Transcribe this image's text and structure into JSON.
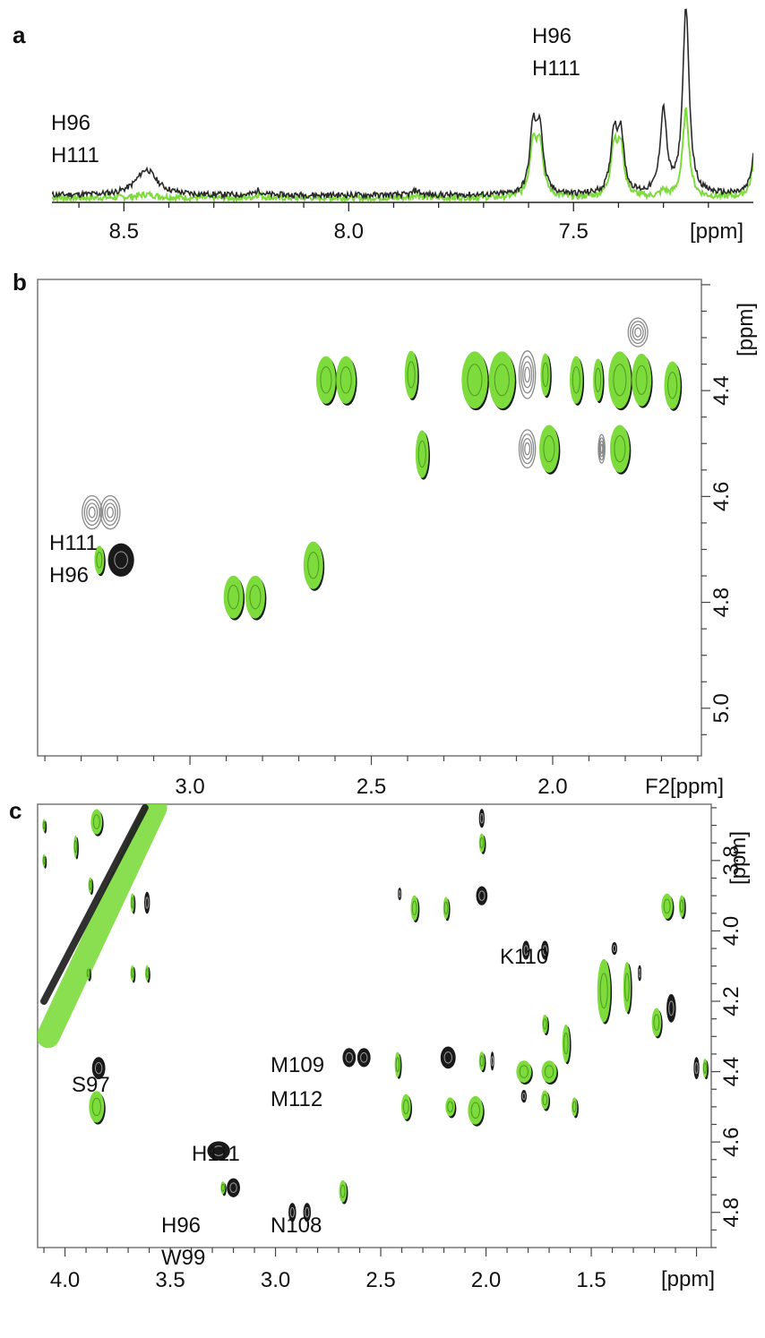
{
  "chart_data": [
    {
      "panel": "a",
      "type": "line",
      "xlabel": "[ppm]",
      "x_ticks": [
        "8.5",
        "8.0",
        "7.5"
      ],
      "x_tick_values": [
        8.5,
        8.0,
        7.5
      ],
      "xlim": [
        8.66,
        7.1
      ],
      "y_visible": false,
      "colors": {
        "black_trace": "#2b2b2b",
        "green_trace": "#7ddc3c"
      },
      "peaks": [
        {
          "x": 8.45,
          "black": 0.22,
          "green": 0.03
        },
        {
          "x": 8.2,
          "black": 0.04,
          "green": 0.03
        },
        {
          "x": 7.85,
          "black": 0.04,
          "green": 0.03
        },
        {
          "x": 7.59,
          "black": 0.55,
          "green": 0.45
        },
        {
          "x": 7.575,
          "black": 0.55,
          "green": 0.45
        },
        {
          "x": 7.41,
          "black": 0.5,
          "green": 0.42
        },
        {
          "x": 7.395,
          "black": 0.5,
          "green": 0.42
        },
        {
          "x": 7.3,
          "black": 0.72,
          "green": 0.05
        },
        {
          "x": 7.25,
          "black": 1.6,
          "green": 0.75
        },
        {
          "x": 7.095,
          "black": 0.45,
          "green": 0.4
        },
        {
          "x": 7.05,
          "black": 0.45,
          "green": 0.4
        }
      ],
      "annotations": [
        {
          "lines": [
            "H96",
            "H111"
          ],
          "x": 8.45
        },
        {
          "lines": [
            "H96",
            "H111"
          ],
          "x": 7.28
        }
      ]
    },
    {
      "panel": "b",
      "type": "scatter",
      "xlabel": "F2[ppm]",
      "ylabel": "[ppm]",
      "x_ticks": [
        "3.0",
        "2.5",
        "2.0"
      ],
      "x_tick_values": [
        3.0,
        2.5,
        2.0
      ],
      "y_ticks": [
        "4.4",
        "4.6",
        "4.8",
        "5.0"
      ],
      "y_tick_values": [
        4.4,
        4.6,
        4.8,
        5.0
      ],
      "xlim": [
        3.42,
        1.59
      ],
      "ylim": [
        4.19,
        5.09
      ],
      "colors": {
        "green": "#7ddc3c",
        "black": "#1a1a1a",
        "gray": "#8a8a8a"
      },
      "peaks": [
        {
          "x": 3.27,
          "y": 4.63,
          "w": 0.03,
          "h": 0.035,
          "color": "gray"
        },
        {
          "x": 3.22,
          "y": 4.63,
          "w": 0.03,
          "h": 0.035,
          "color": "gray"
        },
        {
          "x": 3.19,
          "y": 4.72,
          "w": 0.04,
          "h": 0.035,
          "color": "black"
        },
        {
          "x": 3.25,
          "y": 4.72,
          "w": 0.015,
          "h": 0.03,
          "color": "green"
        },
        {
          "x": 2.88,
          "y": 4.79,
          "w": 0.03,
          "h": 0.045,
          "color": "green"
        },
        {
          "x": 2.82,
          "y": 4.79,
          "w": 0.03,
          "h": 0.045,
          "color": "green"
        },
        {
          "x": 2.66,
          "y": 4.73,
          "w": 0.03,
          "h": 0.05,
          "color": "green"
        },
        {
          "x": 2.625,
          "y": 4.38,
          "w": 0.03,
          "h": 0.05,
          "color": "green"
        },
        {
          "x": 2.57,
          "y": 4.38,
          "w": 0.03,
          "h": 0.05,
          "color": "green"
        },
        {
          "x": 2.39,
          "y": 4.37,
          "w": 0.02,
          "h": 0.05,
          "color": "green"
        },
        {
          "x": 2.36,
          "y": 4.52,
          "w": 0.02,
          "h": 0.05,
          "color": "green"
        },
        {
          "x": 2.215,
          "y": 4.38,
          "w": 0.04,
          "h": 0.06,
          "color": "green"
        },
        {
          "x": 2.14,
          "y": 4.38,
          "w": 0.04,
          "h": 0.06,
          "color": "green"
        },
        {
          "x": 2.07,
          "y": 4.37,
          "w": 0.025,
          "h": 0.05,
          "color": "gray"
        },
        {
          "x": 2.07,
          "y": 4.51,
          "w": 0.025,
          "h": 0.04,
          "color": "gray"
        },
        {
          "x": 2.01,
          "y": 4.51,
          "w": 0.03,
          "h": 0.05,
          "color": "green"
        },
        {
          "x": 2.02,
          "y": 4.37,
          "w": 0.015,
          "h": 0.045,
          "color": "green"
        },
        {
          "x": 1.935,
          "y": 4.38,
          "w": 0.02,
          "h": 0.05,
          "color": "green"
        },
        {
          "x": 1.875,
          "y": 4.38,
          "w": 0.015,
          "h": 0.045,
          "color": "green"
        },
        {
          "x": 1.865,
          "y": 4.51,
          "w": 0.01,
          "h": 0.03,
          "color": "gray"
        },
        {
          "x": 1.815,
          "y": 4.38,
          "w": 0.035,
          "h": 0.06,
          "color": "green"
        },
        {
          "x": 1.815,
          "y": 4.51,
          "w": 0.03,
          "h": 0.05,
          "color": "green"
        },
        {
          "x": 1.765,
          "y": 4.29,
          "w": 0.03,
          "h": 0.03,
          "color": "gray"
        },
        {
          "x": 1.755,
          "y": 4.38,
          "w": 0.03,
          "h": 0.055,
          "color": "green"
        },
        {
          "x": 1.67,
          "y": 4.39,
          "w": 0.025,
          "h": 0.05,
          "color": "green"
        }
      ],
      "annotations": [
        {
          "text": "H111",
          "x": 3.42,
          "y": 4.685
        },
        {
          "text": "H96",
          "x": 3.42,
          "y": 4.735
        }
      ]
    },
    {
      "panel": "c",
      "type": "scatter",
      "xlabel": "[ppm]",
      "ylabel": "[ppm]",
      "x_ticks": [
        "4.0",
        "3.5",
        "3.0",
        "2.5",
        "2.0",
        "1.5"
      ],
      "x_tick_values": [
        4.0,
        3.5,
        3.0,
        2.5,
        2.0,
        1.5
      ],
      "y_ticks": [
        "3.8",
        "4.0",
        "4.2",
        "4.4",
        "4.6",
        "4.8"
      ],
      "y_tick_values": [
        3.8,
        4.0,
        4.2,
        4.4,
        4.6,
        4.8
      ],
      "xlim": [
        4.13,
        0.93
      ],
      "ylim": [
        3.64,
        4.9
      ],
      "colors": {
        "green": "#7ddc3c",
        "black": "#1a1a1a",
        "gray": "#8a8a8a"
      },
      "peaks": [
        {
          "x": 3.84,
          "y": 4.39,
          "w": 0.035,
          "h": 0.035,
          "color": "black"
        },
        {
          "x": 3.85,
          "y": 4.5,
          "w": 0.04,
          "h": 0.05,
          "color": "green"
        },
        {
          "x": 3.27,
          "y": 4.625,
          "w": 0.06,
          "h": 0.03,
          "color": "black"
        },
        {
          "x": 3.2,
          "y": 4.73,
          "w": 0.035,
          "h": 0.03,
          "color": "black"
        },
        {
          "x": 3.25,
          "y": 4.73,
          "w": 0.012,
          "h": 0.02,
          "color": "green"
        },
        {
          "x": 2.92,
          "y": 4.8,
          "w": 0.02,
          "h": 0.03,
          "color": "black"
        },
        {
          "x": 2.85,
          "y": 4.8,
          "w": 0.02,
          "h": 0.03,
          "color": "black"
        },
        {
          "x": 2.68,
          "y": 4.74,
          "w": 0.02,
          "h": 0.035,
          "color": "green"
        },
        {
          "x": 2.65,
          "y": 4.36,
          "w": 0.035,
          "h": 0.03,
          "color": "black"
        },
        {
          "x": 2.58,
          "y": 4.36,
          "w": 0.035,
          "h": 0.03,
          "color": "black"
        },
        {
          "x": 2.42,
          "y": 4.38,
          "w": 0.015,
          "h": 0.04,
          "color": "green"
        },
        {
          "x": 2.38,
          "y": 4.5,
          "w": 0.025,
          "h": 0.04,
          "color": "green"
        },
        {
          "x": 2.18,
          "y": 4.36,
          "w": 0.04,
          "h": 0.035,
          "color": "black"
        },
        {
          "x": 2.02,
          "y": 4.37,
          "w": 0.015,
          "h": 0.03,
          "color": "green"
        },
        {
          "x": 1.97,
          "y": 4.37,
          "w": 0.01,
          "h": 0.03,
          "color": "black"
        },
        {
          "x": 2.17,
          "y": 4.5,
          "w": 0.025,
          "h": 0.03,
          "color": "green"
        },
        {
          "x": 2.05,
          "y": 4.51,
          "w": 0.04,
          "h": 0.045,
          "color": "green"
        },
        {
          "x": 2.02,
          "y": 3.68,
          "w": 0.015,
          "h": 0.03,
          "color": "black"
        },
        {
          "x": 2.02,
          "y": 3.75,
          "w": 0.015,
          "h": 0.03,
          "color": "green"
        },
        {
          "x": 2.41,
          "y": 3.895,
          "w": 0.01,
          "h": 0.02,
          "color": "black"
        },
        {
          "x": 2.34,
          "y": 3.935,
          "w": 0.02,
          "h": 0.04,
          "color": "green"
        },
        {
          "x": 2.19,
          "y": 3.935,
          "w": 0.015,
          "h": 0.035,
          "color": "green"
        },
        {
          "x": 2.02,
          "y": 3.9,
          "w": 0.03,
          "h": 0.03,
          "color": "black"
        },
        {
          "x": 1.81,
          "y": 4.055,
          "w": 0.02,
          "h": 0.03,
          "color": "black"
        },
        {
          "x": 1.72,
          "y": 4.055,
          "w": 0.02,
          "h": 0.03,
          "color": "black"
        },
        {
          "x": 1.82,
          "y": 4.4,
          "w": 0.04,
          "h": 0.035,
          "color": "green"
        },
        {
          "x": 1.7,
          "y": 4.4,
          "w": 0.04,
          "h": 0.035,
          "color": "green"
        },
        {
          "x": 1.82,
          "y": 4.47,
          "w": 0.015,
          "h": 0.02,
          "color": "black"
        },
        {
          "x": 1.72,
          "y": 4.48,
          "w": 0.02,
          "h": 0.03,
          "color": "green"
        },
        {
          "x": 1.58,
          "y": 4.5,
          "w": 0.015,
          "h": 0.03,
          "color": "green"
        },
        {
          "x": 1.72,
          "y": 4.265,
          "w": 0.015,
          "h": 0.03,
          "color": "green"
        },
        {
          "x": 1.62,
          "y": 4.32,
          "w": 0.02,
          "h": 0.06,
          "color": "green"
        },
        {
          "x": 1.44,
          "y": 4.17,
          "w": 0.035,
          "h": 0.1,
          "color": "green"
        },
        {
          "x": 1.33,
          "y": 4.16,
          "w": 0.02,
          "h": 0.08,
          "color": "green"
        },
        {
          "x": 1.39,
          "y": 4.05,
          "w": 0.015,
          "h": 0.02,
          "color": "black"
        },
        {
          "x": 1.27,
          "y": 4.12,
          "w": 0.01,
          "h": 0.025,
          "color": "black"
        },
        {
          "x": 1.19,
          "y": 4.26,
          "w": 0.025,
          "h": 0.045,
          "color": "green"
        },
        {
          "x": 1.12,
          "y": 4.22,
          "w": 0.025,
          "h": 0.045,
          "color": "black"
        },
        {
          "x": 1.14,
          "y": 3.93,
          "w": 0.03,
          "h": 0.04,
          "color": "green"
        },
        {
          "x": 1.07,
          "y": 3.93,
          "w": 0.015,
          "h": 0.035,
          "color": "green"
        },
        {
          "x": 1.0,
          "y": 4.39,
          "w": 0.015,
          "h": 0.035,
          "color": "black"
        },
        {
          "x": 0.96,
          "y": 4.39,
          "w": 0.012,
          "h": 0.03,
          "color": "green"
        },
        {
          "x": 3.85,
          "y": 3.69,
          "w": 0.03,
          "h": 0.04,
          "color": "green"
        },
        {
          "x": 3.95,
          "y": 3.76,
          "w": 0.01,
          "h": 0.035,
          "color": "green"
        },
        {
          "x": 3.88,
          "y": 3.87,
          "w": 0.01,
          "h": 0.025,
          "color": "green"
        },
        {
          "x": 3.68,
          "y": 4.12,
          "w": 0.01,
          "h": 0.025,
          "color": "green"
        },
        {
          "x": 3.61,
          "y": 4.12,
          "w": 0.01,
          "h": 0.025,
          "color": "green"
        },
        {
          "x": 3.68,
          "y": 3.92,
          "w": 0.01,
          "h": 0.03,
          "color": "green"
        },
        {
          "x": 3.61,
          "y": 3.92,
          "w": 0.015,
          "h": 0.035,
          "color": "black"
        },
        {
          "x": 3.89,
          "y": 4.12,
          "w": 0.01,
          "h": 0.02,
          "color": "green"
        },
        {
          "x": 4.1,
          "y": 3.7,
          "w": 0.008,
          "h": 0.02,
          "color": "green"
        },
        {
          "x": 4.1,
          "y": 3.8,
          "w": 0.008,
          "h": 0.02,
          "color": "green"
        }
      ],
      "ridges": [
        {
          "x1": 3.57,
          "y1": 3.65,
          "x2": 4.08,
          "y2": 4.3,
          "color": "green",
          "width": 26
        },
        {
          "x1": 3.62,
          "y1": 3.65,
          "x2": 4.1,
          "y2": 4.2,
          "color": "black",
          "width": 8
        }
      ],
      "annotations": [
        {
          "text": "S97",
          "x": 3.84,
          "y": 4.33
        },
        {
          "text": "H111",
          "x": 3.27,
          "y": 4.565
        },
        {
          "text": "H96",
          "x": 3.37,
          "y": 4.735
        },
        {
          "text": "W99",
          "x": 3.37,
          "y": 4.815
        },
        {
          "text": "N108",
          "x": 2.84,
          "y": 4.735
        },
        {
          "text": "M109",
          "x": 2.84,
          "y": 4.305
        },
        {
          "text": "M112",
          "x": 2.84,
          "y": 4.385
        },
        {
          "text": "K110",
          "x": 1.68,
          "y": 3.975
        }
      ]
    }
  ],
  "panel_labels": {
    "a": "a",
    "b": "b",
    "c": "c"
  },
  "labels": {
    "a_ann1_l1": "H96",
    "a_ann1_l2": "H111",
    "a_ann2_l1": "H96",
    "a_ann2_l2": "H111",
    "b_h111": "H111",
    "b_h96": "H96",
    "c_s97": "S97",
    "c_h111": "H111",
    "c_h96": "H96",
    "c_w99": "W99",
    "c_n108": "N108",
    "c_m109": "M109",
    "c_m112": "M112",
    "c_k110": "K110"
  }
}
